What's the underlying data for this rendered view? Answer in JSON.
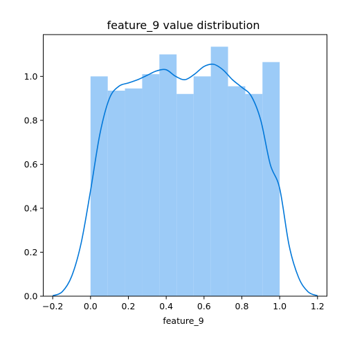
{
  "chart_data": {
    "type": "histogram",
    "title": "feature_9 value distribution",
    "xlabel": "feature_9",
    "ylabel": "",
    "xlim": [
      -0.25,
      1.25
    ],
    "ylim": [
      0,
      1.19
    ],
    "xticks": [
      -0.2,
      0.0,
      0.2,
      0.4,
      0.6,
      0.8,
      1.0,
      1.2
    ],
    "xtick_labels": [
      "−0.2",
      "0.0",
      "0.2",
      "0.4",
      "0.6",
      "0.8",
      "1.0",
      "1.2"
    ],
    "yticks": [
      0.0,
      0.2,
      0.4,
      0.6,
      0.8,
      1.0
    ],
    "ytick_labels": [
      "0.0",
      "0.2",
      "0.4",
      "0.6",
      "0.8",
      "1.0"
    ],
    "grid": false,
    "bar_color": "#9ccbf7",
    "line_color": "#0077d9",
    "bins": [
      {
        "x0": 0.0,
        "x1": 0.091,
        "height": 1.0
      },
      {
        "x0": 0.091,
        "x1": 0.182,
        "height": 0.935
      },
      {
        "x0": 0.182,
        "x1": 0.273,
        "height": 0.945
      },
      {
        "x0": 0.273,
        "x1": 0.364,
        "height": 1.01
      },
      {
        "x0": 0.364,
        "x1": 0.455,
        "height": 1.1
      },
      {
        "x0": 0.455,
        "x1": 0.545,
        "height": 0.92
      },
      {
        "x0": 0.545,
        "x1": 0.636,
        "height": 1.0
      },
      {
        "x0": 0.636,
        "x1": 0.727,
        "height": 1.135
      },
      {
        "x0": 0.727,
        "x1": 0.818,
        "height": 0.955
      },
      {
        "x0": 0.818,
        "x1": 0.909,
        "height": 0.92
      },
      {
        "x0": 0.909,
        "x1": 1.0,
        "height": 1.065
      }
    ],
    "kde": {
      "x": [
        -0.2,
        -0.15,
        -0.1,
        -0.05,
        0.0,
        0.05,
        0.1,
        0.15,
        0.2,
        0.25,
        0.3,
        0.35,
        0.4,
        0.45,
        0.5,
        0.55,
        0.6,
        0.65,
        0.7,
        0.75,
        0.8,
        0.85,
        0.9,
        0.95,
        1.0,
        1.05,
        1.1,
        1.15,
        1.2
      ],
      "y": [
        0.002,
        0.02,
        0.09,
        0.24,
        0.48,
        0.74,
        0.9,
        0.955,
        0.97,
        0.985,
        1.005,
        1.025,
        1.03,
        1.0,
        0.985,
        1.01,
        1.045,
        1.055,
        1.03,
        0.985,
        0.95,
        0.91,
        0.8,
        0.6,
        0.49,
        0.23,
        0.085,
        0.02,
        0.002
      ]
    }
  }
}
